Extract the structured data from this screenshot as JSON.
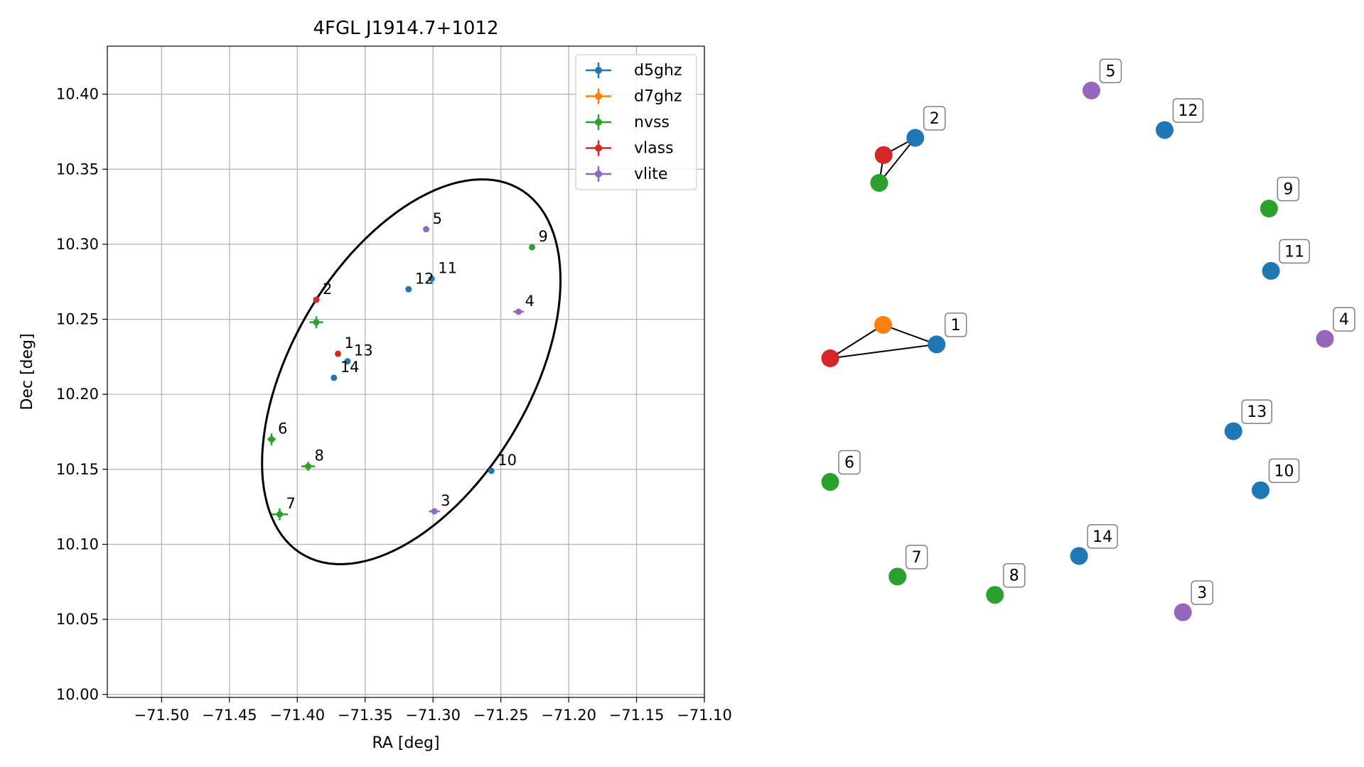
{
  "chart_data": [
    {
      "type": "scatter",
      "title": "4FGL J1914.7+1012",
      "xlabel": "RA [deg]",
      "ylabel": "Dec [deg]",
      "xlim": [
        -71.54,
        -71.1
      ],
      "ylim": [
        9.998,
        10.432
      ],
      "xticks": [
        -71.5,
        -71.45,
        -71.4,
        -71.35,
        -71.3,
        -71.25,
        -71.2,
        -71.15,
        -71.1
      ],
      "xtick_labels": [
        "−71.50",
        "−71.45",
        "−71.40",
        "−71.35",
        "−71.30",
        "−71.25",
        "−71.20",
        "−71.15",
        "−71.10"
      ],
      "yticks": [
        10.0,
        10.05,
        10.1,
        10.15,
        10.2,
        10.25,
        10.3,
        10.35,
        10.4
      ],
      "ytick_labels": [
        "10.00",
        "10.05",
        "10.10",
        "10.15",
        "10.20",
        "10.25",
        "10.30",
        "10.35",
        "10.40"
      ],
      "grid": true,
      "legend_position": "top-right",
      "series": [
        {
          "name": "d5ghz",
          "color": "#1f77b4"
        },
        {
          "name": "d7ghz",
          "color": "#ff7f0e"
        },
        {
          "name": "nvss",
          "color": "#2ca02c"
        },
        {
          "name": "vlass",
          "color": "#d62728"
        },
        {
          "name": "vlite",
          "color": "#9467bd"
        }
      ],
      "points": [
        {
          "label": "1",
          "series": "vlass",
          "x": -71.37,
          "y": 10.227,
          "xerr": 0.0,
          "yerr": 0.0
        },
        {
          "label": "2",
          "series": "vlass",
          "x": -71.386,
          "y": 10.263,
          "xerr": 0.0,
          "yerr": 0.0
        },
        {
          "label": "3",
          "series": "vlite",
          "x": -71.299,
          "y": 10.122,
          "xerr": 0.004,
          "yerr": 0.002
        },
        {
          "label": "4",
          "series": "vlite",
          "x": -71.237,
          "y": 10.255,
          "xerr": 0.004,
          "yerr": 0.002
        },
        {
          "label": "5",
          "series": "vlite",
          "x": -71.305,
          "y": 10.31,
          "xerr": 0.0,
          "yerr": 0.0
        },
        {
          "label": "6",
          "series": "nvss",
          "x": -71.419,
          "y": 10.17,
          "xerr": 0.003,
          "yerr": 0.004
        },
        {
          "label": "7",
          "series": "nvss",
          "x": -71.413,
          "y": 10.12,
          "xerr": 0.006,
          "yerr": 0.004
        },
        {
          "label": "8",
          "series": "nvss",
          "x": -71.392,
          "y": 10.152,
          "xerr": 0.005,
          "yerr": 0.003
        },
        {
          "label": "9",
          "series": "nvss",
          "x": -71.227,
          "y": 10.298,
          "xerr": 0.0,
          "yerr": 0.0
        },
        {
          "label": "10",
          "series": "d5ghz",
          "x": -71.257,
          "y": 10.149,
          "xerr": 0.0,
          "yerr": 0.0
        },
        {
          "label": "11",
          "series": "d5ghz",
          "x": -71.301,
          "y": 10.277,
          "xerr": 0.0,
          "yerr": 0.0
        },
        {
          "label": "12",
          "series": "d5ghz",
          "x": -71.318,
          "y": 10.27,
          "xerr": 0.0,
          "yerr": 0.0
        },
        {
          "label": "13",
          "series": "d5ghz",
          "x": -71.363,
          "y": 10.222,
          "xerr": 0.0,
          "yerr": 0.0
        },
        {
          "label": "14",
          "series": "d5ghz",
          "x": -71.373,
          "y": 10.211,
          "xerr": 0.0,
          "yerr": 0.0
        },
        {
          "label": "",
          "series": "nvss",
          "x": -71.386,
          "y": 10.248,
          "xerr": 0.005,
          "yerr": 0.004
        }
      ],
      "ellipse": {
        "center_x": -71.316,
        "center_y": 10.215,
        "semi_axis_a": 0.146,
        "semi_axis_b": 0.085,
        "rotation_deg": 54
      }
    },
    {
      "type": "graph",
      "nodes": [
        {
          "id": "n1",
          "label": "1",
          "series": "d5ghz",
          "fx": 0.215,
          "fy": 0.468
        },
        {
          "id": "n1b",
          "label": "",
          "series": "d7ghz",
          "fx": 0.107,
          "fy": 0.433
        },
        {
          "id": "n1c",
          "label": "",
          "series": "vlass",
          "fx": 0.0,
          "fy": 0.493
        },
        {
          "id": "n2",
          "label": "2",
          "series": "d5ghz",
          "fx": 0.172,
          "fy": 0.097
        },
        {
          "id": "n2b",
          "label": "",
          "series": "vlass",
          "fx": 0.108,
          "fy": 0.128
        },
        {
          "id": "n2c",
          "label": "",
          "series": "nvss",
          "fx": 0.099,
          "fy": 0.178
        },
        {
          "id": "n3",
          "label": "3",
          "series": "vlite",
          "fx": 0.713,
          "fy": 0.949
        },
        {
          "id": "n4",
          "label": "4",
          "series": "vlite",
          "fx": 1.0,
          "fy": 0.458
        },
        {
          "id": "n5",
          "label": "5",
          "series": "vlite",
          "fx": 0.528,
          "fy": 0.012
        },
        {
          "id": "n6",
          "label": "6",
          "series": "nvss",
          "fx": 0.0,
          "fy": 0.715
        },
        {
          "id": "n7",
          "label": "7",
          "series": "nvss",
          "fx": 0.136,
          "fy": 0.885
        },
        {
          "id": "n8",
          "label": "8",
          "series": "nvss",
          "fx": 0.333,
          "fy": 0.918
        },
        {
          "id": "n9",
          "label": "9",
          "series": "nvss",
          "fx": 0.887,
          "fy": 0.224
        },
        {
          "id": "n10",
          "label": "10",
          "series": "d5ghz",
          "fx": 0.87,
          "fy": 0.73
        },
        {
          "id": "n11",
          "label": "11",
          "series": "d5ghz",
          "fx": 0.891,
          "fy": 0.336
        },
        {
          "id": "n12",
          "label": "12",
          "series": "d5ghz",
          "fx": 0.676,
          "fy": 0.083
        },
        {
          "id": "n13",
          "label": "13",
          "series": "d5ghz",
          "fx": 0.815,
          "fy": 0.624
        },
        {
          "id": "n14",
          "label": "14",
          "series": "d5ghz",
          "fx": 0.503,
          "fy": 0.848
        }
      ],
      "edges": [
        [
          "n1",
          "n1b"
        ],
        [
          "n1b",
          "n1c"
        ],
        [
          "n1c",
          "n1"
        ],
        [
          "n2",
          "n2b"
        ],
        [
          "n2b",
          "n2c"
        ],
        [
          "n2c",
          "n2"
        ]
      ]
    }
  ]
}
